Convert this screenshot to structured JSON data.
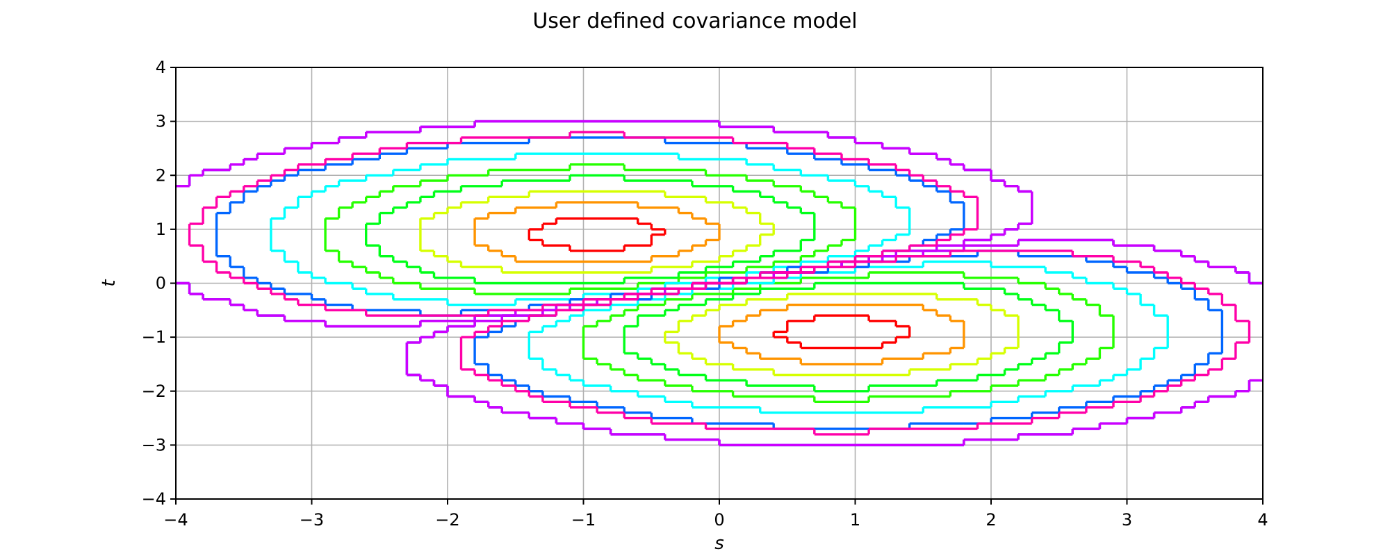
{
  "chart_data": {
    "type": "contour",
    "title": "User defined covariance model",
    "xlabel": "s",
    "ylabel": "t",
    "xlim": [
      -4,
      4
    ],
    "ylim": [
      -4,
      4
    ],
    "xticks": [
      -4,
      -3,
      -2,
      -1,
      0,
      1,
      2,
      3,
      4
    ],
    "yticks": [
      -4,
      -3,
      -2,
      -1,
      0,
      1,
      2,
      3,
      4
    ],
    "xtick_labels": [
      "−4",
      "−3",
      "−2",
      "−1",
      "0",
      "1",
      "2",
      "3",
      "4"
    ],
    "ytick_labels": [
      "−4",
      "−3",
      "−2",
      "−1",
      "0",
      "1",
      "2",
      "3",
      "4"
    ],
    "grid": true,
    "colormap": "hsv",
    "surface": {
      "description_of_shape": "antisymmetric dipole: positive lobe centred near (-0.9, 0.9), negative lobe centred near (0.9, -0.9); contours drawn on a coarse grid giving stair-step appearance",
      "lobe_center": [
        -0.9,
        0.9
      ],
      "lobe_rx": 1.12,
      "lobe_ry": 0.7
    },
    "levels": [
      {
        "index": 0,
        "color": "#ff0000"
      },
      {
        "index": 1,
        "color": "#ff9400"
      },
      {
        "index": 2,
        "color": "#d6ff00"
      },
      {
        "index": 3,
        "color": "#00ff19"
      },
      {
        "index": 4,
        "color": "#26ff00"
      },
      {
        "index": 5,
        "color": "#00ffff"
      },
      {
        "index": 6,
        "color": "#0066ff"
      },
      {
        "index": 7,
        "color": "#2a00ff"
      },
      {
        "index": 8,
        "color": "#cc00ff"
      },
      {
        "index": 9,
        "color": "#ff00a8"
      },
      {
        "index": 10,
        "color": "#ff0090"
      }
    ]
  }
}
